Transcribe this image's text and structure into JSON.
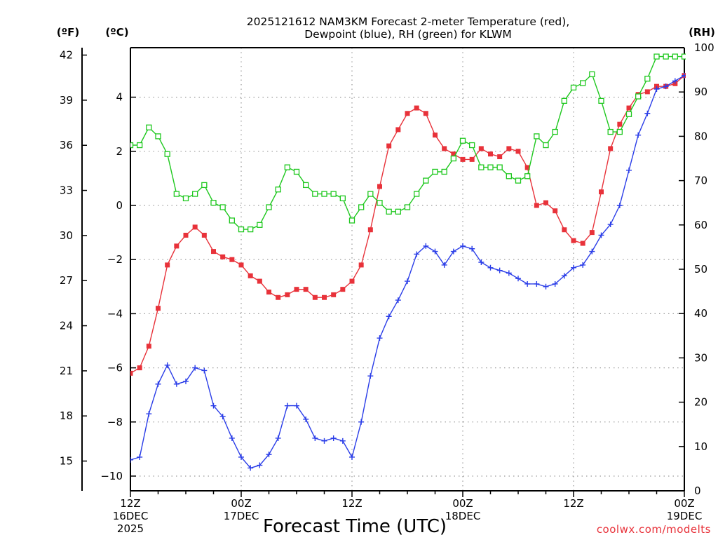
{
  "chart_data": {
    "type": "line",
    "title_line1": "2025121612 NAM3KM Forecast 2-meter Temperature (red),",
    "title_line2": "Dewpoint (blue), RH (green) for KLWM",
    "unit_f": "(ºF)",
    "unit_c": "(ºC)",
    "unit_rh": "(RH)",
    "xlabel": "Forecast Time (UTC)",
    "credit": "coolwx.com/modelts",
    "x_range_hours": [
      0,
      60
    ],
    "ylim_c": [
      -10.5,
      6
    ],
    "ylim_rh": [
      0,
      100
    ],
    "left_c_ticks": [
      "4",
      "2",
      "0",
      "−2",
      "−4",
      "−6",
      "−8",
      "−10"
    ],
    "left_c_tick_values": [
      4,
      2,
      0,
      -2,
      -4,
      -6,
      -8,
      -10
    ],
    "left_f_ticks": [
      "42",
      "39",
      "36",
      "33",
      "30",
      "27",
      "24",
      "21",
      "18",
      "15"
    ],
    "left_f_tick_values": [
      42,
      39,
      36,
      33,
      30,
      27,
      24,
      21,
      18,
      15
    ],
    "right_rh_ticks": [
      "100",
      "90",
      "80",
      "70",
      "60",
      "50",
      "40",
      "30",
      "20",
      "10",
      "0"
    ],
    "right_rh_tick_values": [
      100,
      90,
      80,
      70,
      60,
      50,
      40,
      30,
      20,
      10,
      0
    ],
    "x_ticks": [
      {
        "hour": 0,
        "line1": "12Z",
        "line2": "16DEC",
        "line3": "2025"
      },
      {
        "hour": 12,
        "line1": "00Z",
        "line2": "17DEC",
        "line3": ""
      },
      {
        "hour": 24,
        "line1": "12Z",
        "line2": "",
        "line3": ""
      },
      {
        "hour": 36,
        "line1": "00Z",
        "line2": "18DEC",
        "line3": ""
      },
      {
        "hour": 48,
        "line1": "12Z",
        "line2": "",
        "line3": ""
      },
      {
        "hour": 60,
        "line1": "00Z",
        "line2": "19DEC",
        "line3": ""
      }
    ],
    "grid": true,
    "series": [
      {
        "name": "2-meter Temperature",
        "color": "#e8323a",
        "marker": "filled-square",
        "axis": "C",
        "x": [
          0,
          1,
          2,
          3,
          4,
          5,
          6,
          7,
          8,
          9,
          10,
          11,
          12,
          13,
          14,
          15,
          16,
          17,
          18,
          19,
          20,
          21,
          22,
          23,
          24,
          25,
          26,
          27,
          28,
          29,
          30,
          31,
          32,
          33,
          34,
          35,
          36,
          37,
          38,
          39,
          40,
          41,
          42,
          43,
          44,
          45,
          46,
          47,
          48,
          49,
          50,
          51,
          52,
          53,
          54,
          55,
          56,
          57,
          58,
          59,
          60
        ],
        "values": [
          -6.2,
          -6.0,
          -5.2,
          -3.8,
          -2.2,
          -1.5,
          -1.1,
          -0.8,
          -1.1,
          -1.7,
          -1.9,
          -2.0,
          -2.2,
          -2.6,
          -2.8,
          -3.2,
          -3.4,
          -3.3,
          -3.1,
          -3.1,
          -3.4,
          -3.4,
          -3.3,
          -3.1,
          -2.8,
          -2.2,
          -0.9,
          0.7,
          2.2,
          2.8,
          3.4,
          3.6,
          3.4,
          2.6,
          2.1,
          1.9,
          1.7,
          1.7,
          2.1,
          1.9,
          1.8,
          2.1,
          2.0,
          1.4,
          0.0,
          0.1,
          -0.2,
          -0.9,
          -1.3,
          -1.4,
          -1.0,
          0.5,
          2.1,
          3.0,
          3.6,
          4.1,
          4.2,
          4.4,
          4.4,
          4.5,
          4.8
        ]
      },
      {
        "name": "Dewpoint",
        "color": "#2a3de8",
        "marker": "plus",
        "axis": "C",
        "x": [
          0,
          1,
          2,
          3,
          4,
          5,
          6,
          7,
          8,
          9,
          10,
          11,
          12,
          13,
          14,
          15,
          16,
          17,
          18,
          19,
          20,
          21,
          22,
          23,
          24,
          25,
          26,
          27,
          28,
          29,
          30,
          31,
          32,
          33,
          34,
          35,
          36,
          37,
          38,
          39,
          40,
          41,
          42,
          43,
          44,
          45,
          46,
          47,
          48,
          49,
          50,
          51,
          52,
          53,
          54,
          55,
          56,
          57,
          58,
          59,
          60
        ],
        "values": [
          -9.4,
          -9.3,
          -7.7,
          -6.6,
          -5.9,
          -6.6,
          -6.5,
          -6.0,
          -6.1,
          -7.4,
          -7.8,
          -8.6,
          -9.3,
          -9.7,
          -9.6,
          -9.2,
          -8.6,
          -7.4,
          -7.4,
          -7.9,
          -8.6,
          -8.7,
          -8.6,
          -8.7,
          -9.3,
          -8.0,
          -6.3,
          -4.9,
          -4.1,
          -3.5,
          -2.8,
          -1.8,
          -1.5,
          -1.7,
          -2.2,
          -1.7,
          -1.5,
          -1.6,
          -2.1,
          -2.3,
          -2.4,
          -2.5,
          -2.7,
          -2.9,
          -2.9,
          -3.0,
          -2.9,
          -2.6,
          -2.3,
          -2.2,
          -1.7,
          -1.1,
          -0.7,
          0.0,
          1.3,
          2.6,
          3.4,
          4.3,
          4.4,
          4.6,
          4.8
        ]
      },
      {
        "name": "RH",
        "color": "#1ec81e",
        "marker": "open-square",
        "axis": "RH",
        "x": [
          0,
          1,
          2,
          3,
          4,
          5,
          6,
          7,
          8,
          9,
          10,
          11,
          12,
          13,
          14,
          15,
          16,
          17,
          18,
          19,
          20,
          21,
          22,
          23,
          24,
          25,
          26,
          27,
          28,
          29,
          30,
          31,
          32,
          33,
          34,
          35,
          36,
          37,
          38,
          39,
          40,
          41,
          42,
          43,
          44,
          45,
          46,
          47,
          48,
          49,
          50,
          51,
          52,
          53,
          54,
          55,
          56,
          57,
          58,
          59,
          60
        ],
        "values": [
          78,
          78,
          82,
          80,
          76,
          67,
          66,
          67,
          69,
          65,
          64,
          61,
          59,
          59,
          60,
          64,
          68,
          73,
          72,
          69,
          67,
          67,
          67,
          66,
          61,
          64,
          67,
          65,
          63,
          63,
          64,
          67,
          70,
          72,
          72,
          75,
          79,
          78,
          73,
          73,
          73,
          71,
          70,
          71,
          80,
          78,
          81,
          88,
          91,
          92,
          94,
          88,
          81,
          81,
          85,
          89,
          93,
          98,
          98,
          98,
          98
        ]
      }
    ]
  }
}
